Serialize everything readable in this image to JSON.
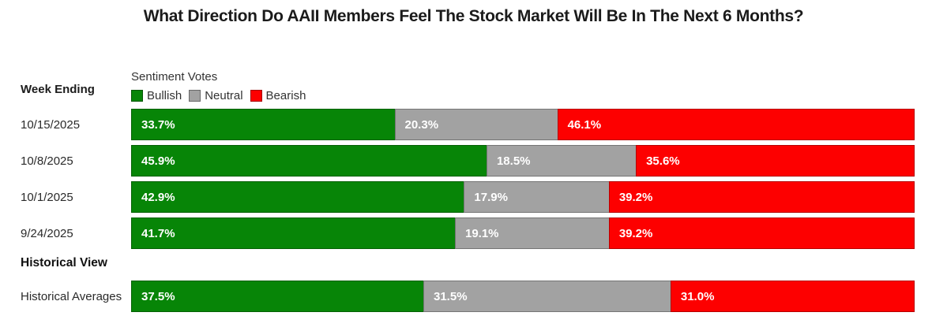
{
  "title": "What Direction Do AAII Members Feel The Stock Market Will Be In The Next 6 Months?",
  "left_header": "Week Ending",
  "section_heading": "Historical View",
  "legend": {
    "title": "Sentiment Votes",
    "items": [
      {
        "label": "Bullish",
        "color": "#078507"
      },
      {
        "label": "Neutral",
        "color": "#a2a2a2"
      },
      {
        "label": "Bearish",
        "color": "#fd0000"
      }
    ]
  },
  "chart_data": {
    "type": "bar",
    "orientation": "horizontal",
    "stacked": true,
    "unit": "percent",
    "series_names": [
      "Bullish",
      "Neutral",
      "Bearish"
    ],
    "series_colors": [
      "#078507",
      "#a2a2a2",
      "#fd0000"
    ],
    "xlim": [
      0,
      100
    ],
    "rows": [
      {
        "label": "10/15/2025",
        "values": [
          33.7,
          20.3,
          46.1
        ],
        "seg_labels": [
          "33.7%",
          "20.3%",
          "46.1%"
        ]
      },
      {
        "label": "10/8/2025",
        "values": [
          45.9,
          18.5,
          35.6
        ],
        "seg_labels": [
          "45.9%",
          "18.5%",
          "35.6%"
        ]
      },
      {
        "label": "10/1/2025",
        "values": [
          42.9,
          17.9,
          39.2
        ],
        "seg_labels": [
          "42.9%",
          "17.9%",
          "39.2%"
        ]
      },
      {
        "label": "9/24/2025",
        "values": [
          41.7,
          19.1,
          39.2
        ],
        "seg_labels": [
          "41.7%",
          "19.1%",
          "39.2%"
        ]
      },
      {
        "label": "Historical Averages",
        "values": [
          37.5,
          31.5,
          31.0
        ],
        "seg_labels": [
          "37.5%",
          "31.5%",
          "31.0%"
        ]
      }
    ]
  }
}
